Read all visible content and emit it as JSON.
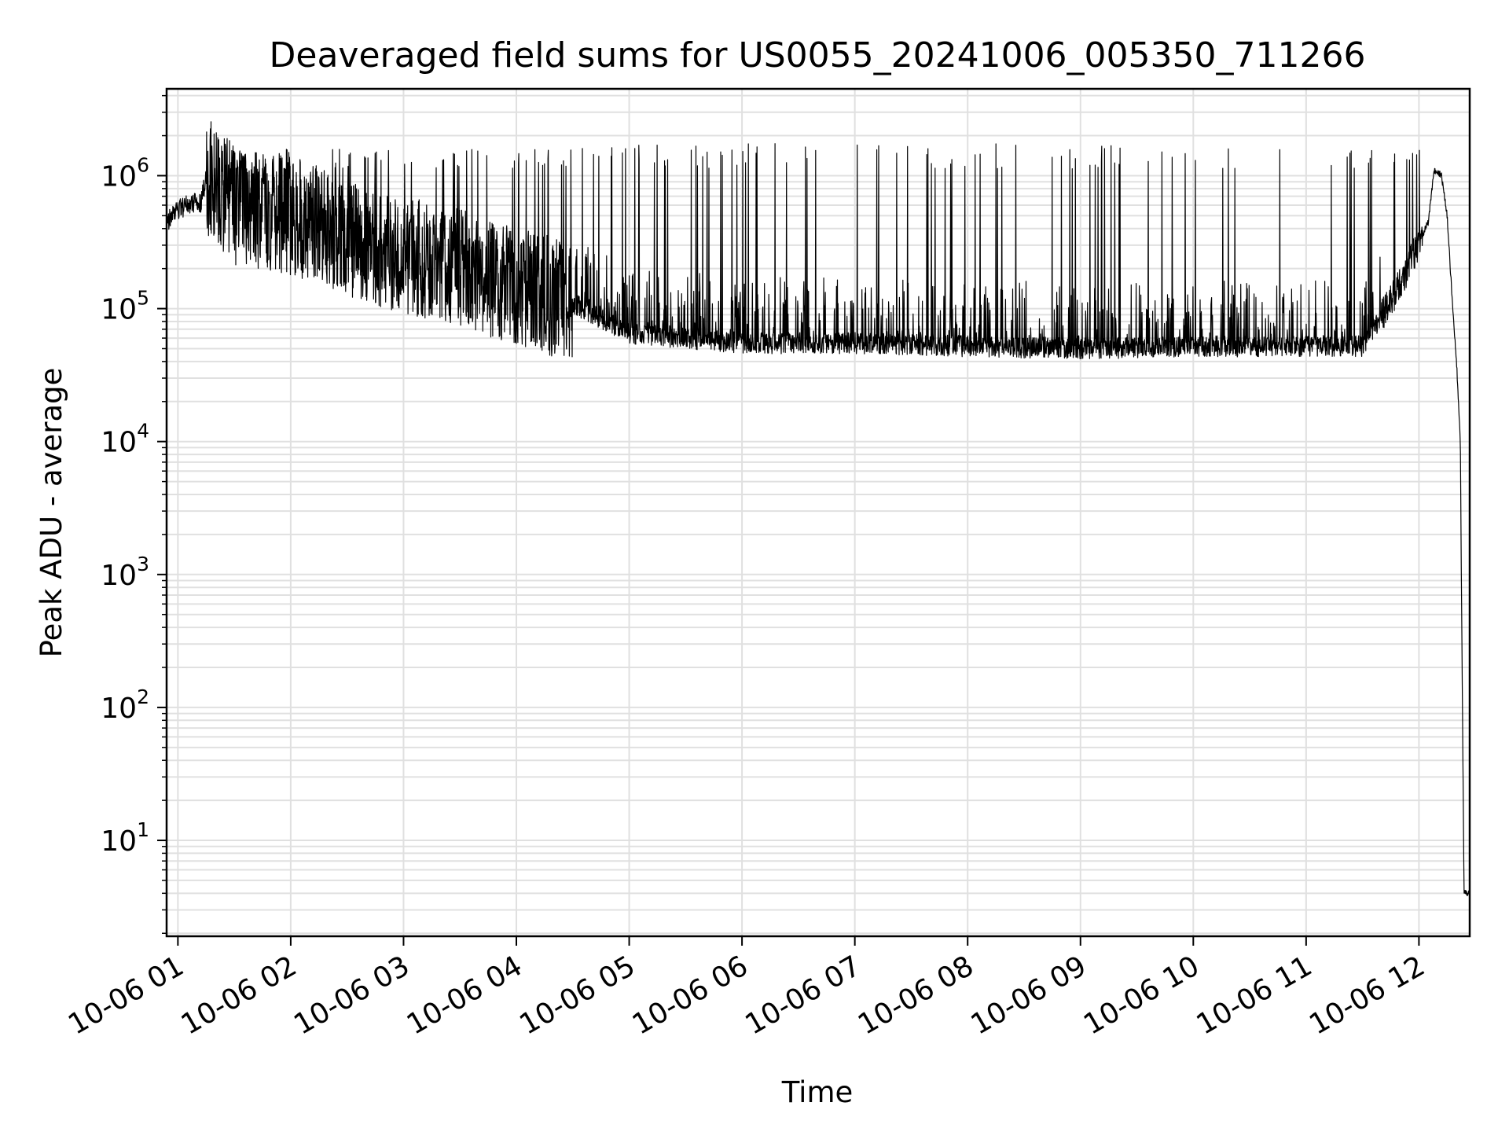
{
  "chart_data": {
    "type": "line",
    "title": "Deaveraged field sums for US0055_20241006_005350_711266",
    "xlabel": "Time",
    "ylabel": "Peak ADU - average",
    "yscale": "log",
    "grid": true,
    "line_color": "#000000",
    "grid_color": "#e0e0e0",
    "xlim": [
      "2024-10-06 00:54",
      "2024-10-06 12:27"
    ],
    "ylim": [
      1.9,
      4500000
    ],
    "x_ticks": [
      "10-06 01",
      "10-06 02",
      "10-06 03",
      "10-06 04",
      "10-06 05",
      "10-06 06",
      "10-06 07",
      "10-06 08",
      "10-06 09",
      "10-06 10",
      "10-06 11",
      "10-06 12"
    ],
    "y_ticks": [
      {
        "base": "10",
        "exp": "1"
      },
      {
        "base": "10",
        "exp": "2"
      },
      {
        "base": "10",
        "exp": "3"
      },
      {
        "base": "10",
        "exp": "4"
      },
      {
        "base": "10",
        "exp": "5"
      },
      {
        "base": "10",
        "exp": "6"
      }
    ],
    "series": [
      {
        "x": [
          "2024-10-06 00:54",
          "2024-10-06 01:00",
          "2024-10-06 01:10",
          "2024-10-06 01:12",
          "2024-10-06 01:15",
          "2024-10-06 01:30",
          "2024-10-06 02:00",
          "2024-10-06 02:30",
          "2024-10-06 03:00",
          "2024-10-06 03:30",
          "2024-10-06 04:00",
          "2024-10-06 04:30",
          "2024-10-06 05:00",
          "2024-10-06 05:30",
          "2024-10-06 06:00",
          "2024-10-06 07:00",
          "2024-10-06 08:00",
          "2024-10-06 09:00",
          "2024-10-06 10:00",
          "2024-10-06 11:00",
          "2024-10-06 11:30",
          "2024-10-06 11:50",
          "2024-10-06 12:05",
          "2024-10-06 12:08",
          "2024-10-06 12:12",
          "2024-10-06 12:15",
          "2024-10-06 12:18",
          "2024-10-06 12:20",
          "2024-10-06 12:22",
          "2024-10-06 12:23",
          "2024-10-06 12:24",
          "2024-10-06 12:27"
        ],
        "y": [
          450000,
          550000,
          650000,
          600000,
          1000000,
          600000,
          500000,
          350000,
          250000,
          200000,
          150000,
          110000,
          65000,
          60000,
          55000,
          55000,
          52000,
          50000,
          52000,
          52000,
          52000,
          150000,
          450000,
          1100000,
          1000000,
          500000,
          100000,
          40000,
          10000,
          180,
          4,
          4
        ]
      }
    ]
  }
}
